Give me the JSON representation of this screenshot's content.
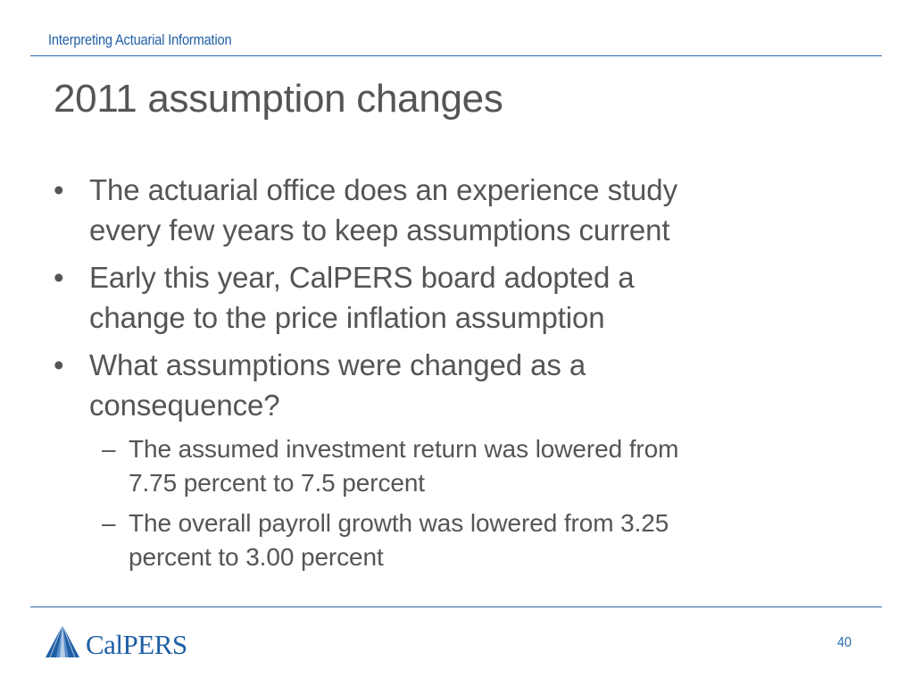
{
  "header": {
    "section_title": "Interpreting Actuarial Information"
  },
  "slide": {
    "title": "2011 assumption changes",
    "bullets": [
      {
        "marker": "•",
        "lines": [
          "The actuarial office does an experience study",
          "every few years to keep assumptions current"
        ]
      },
      {
        "marker": "•",
        "lines": [
          "Early this year, CalPERS board adopted a",
          "change to the price inflation assumption"
        ]
      },
      {
        "marker": "•",
        "lines": [
          "What assumptions were changed as a",
          "consequence?"
        ]
      }
    ],
    "sub_bullets": [
      {
        "marker": "–",
        "lines": [
          "The assumed investment return was lowered from",
          "7.75 percent to 7.5 percent"
        ]
      },
      {
        "marker": "–",
        "lines": [
          "The overall payroll growth was lowered from 3.25",
          "percent to 3.00 percent"
        ]
      }
    ]
  },
  "footer": {
    "logo_text": "CalPERS",
    "logo_icon": "calpers-logo-icon",
    "page_number": "40"
  },
  "colors": {
    "brand_blue": "#1f5fa6",
    "rule_blue": "#2a6aa9",
    "body_text": "#555555"
  }
}
